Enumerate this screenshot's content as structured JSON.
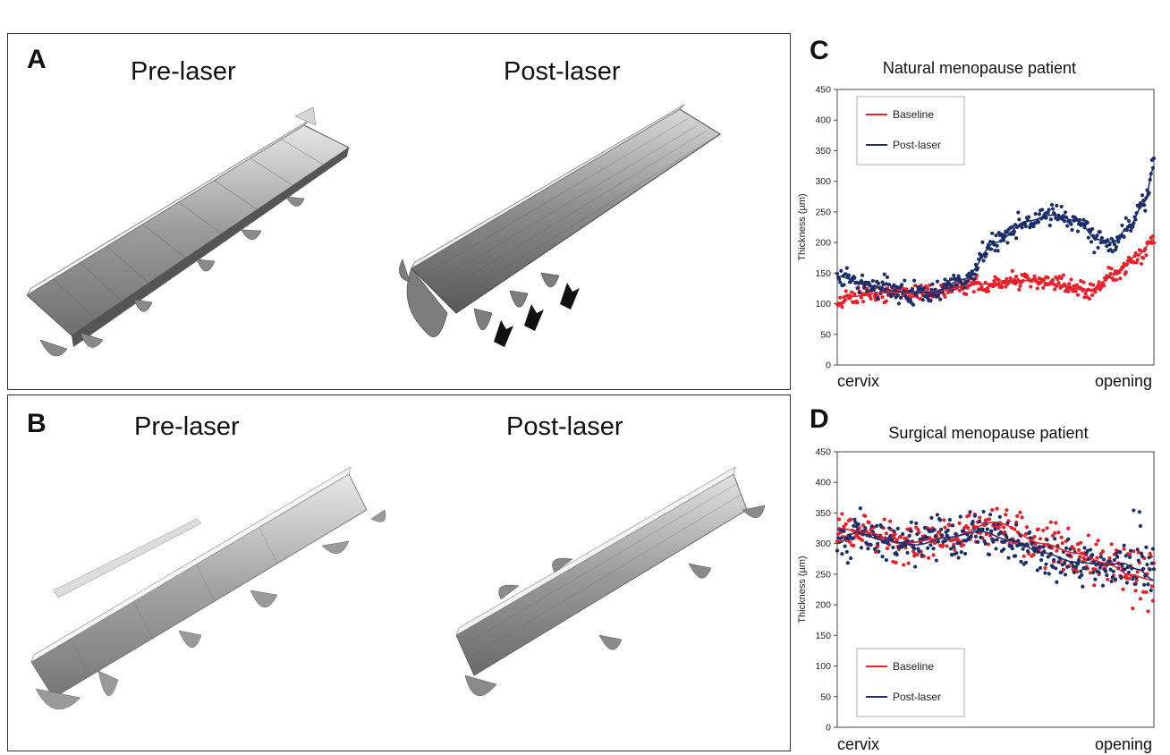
{
  "panel_a": {
    "letter": "A",
    "left_label": "Pre-laser",
    "right_label": "Post-laser"
  },
  "panel_b": {
    "letter": "B",
    "left_label": "Pre-laser",
    "right_label": "Post-laser"
  },
  "colors": {
    "baseline": "#e8202a",
    "post_laser": "#1b2f6b",
    "tissue": "#9a9a9a"
  },
  "chart_data": [
    {
      "letter": "C",
      "type": "scatter",
      "title": "Natural menopause patient",
      "ylabel": "Thickness (µm)",
      "ylim": [
        0,
        450
      ],
      "yticks": [
        0,
        50,
        100,
        150,
        200,
        250,
        300,
        350,
        400,
        450
      ],
      "x_categories": [
        "cervix",
        "opening"
      ],
      "legend_position": "top-left",
      "series": [
        {
          "name": "Baseline",
          "color": "#e8202a",
          "trend": [
            [
              0,
              100
            ],
            [
              0.05,
              112
            ],
            [
              0.15,
              118
            ],
            [
              0.3,
              120
            ],
            [
              0.45,
              132
            ],
            [
              0.6,
              138
            ],
            [
              0.75,
              128
            ],
            [
              0.8,
              122
            ],
            [
              0.88,
              150
            ],
            [
              0.95,
              180
            ],
            [
              1,
              205
            ]
          ]
        },
        {
          "name": "Post-laser",
          "color": "#1b2f6b",
          "trend": [
            [
              0,
              145
            ],
            [
              0.1,
              130
            ],
            [
              0.2,
              120
            ],
            [
              0.3,
              118
            ],
            [
              0.4,
              140
            ],
            [
              0.5,
              200
            ],
            [
              0.6,
              235
            ],
            [
              0.68,
              245
            ],
            [
              0.76,
              235
            ],
            [
              0.82,
              205
            ],
            [
              0.87,
              200
            ],
            [
              0.92,
              225
            ],
            [
              0.97,
              265
            ],
            [
              1,
              325
            ]
          ]
        }
      ]
    },
    {
      "letter": "D",
      "type": "scatter",
      "title": "Surgical menopause patient",
      "ylabel": "Thickness (µm)",
      "ylim": [
        0,
        450
      ],
      "yticks": [
        0,
        50,
        100,
        150,
        200,
        250,
        300,
        350,
        400,
        450
      ],
      "x_categories": [
        "cervix",
        "opening"
      ],
      "legend_position": "bottom-left",
      "series": [
        {
          "name": "Baseline",
          "color": "#e8202a",
          "trend": [
            [
              0,
              325
            ],
            [
              0.1,
              318
            ],
            [
              0.2,
              300
            ],
            [
              0.35,
              310
            ],
            [
              0.5,
              335
            ],
            [
              0.65,
              300
            ],
            [
              0.75,
              285
            ],
            [
              0.85,
              268
            ],
            [
              0.93,
              248
            ],
            [
              1,
              240
            ]
          ]
        },
        {
          "name": "Post-laser",
          "color": "#1b2f6b",
          "trend": [
            [
              0,
              300
            ],
            [
              0.06,
              318
            ],
            [
              0.15,
              305
            ],
            [
              0.25,
              298
            ],
            [
              0.35,
              310
            ],
            [
              0.45,
              320
            ],
            [
              0.55,
              305
            ],
            [
              0.65,
              285
            ],
            [
              0.75,
              270
            ],
            [
              0.85,
              265
            ],
            [
              0.9,
              268
            ],
            [
              0.95,
              258
            ],
            [
              1,
              240
            ]
          ]
        }
      ]
    }
  ]
}
